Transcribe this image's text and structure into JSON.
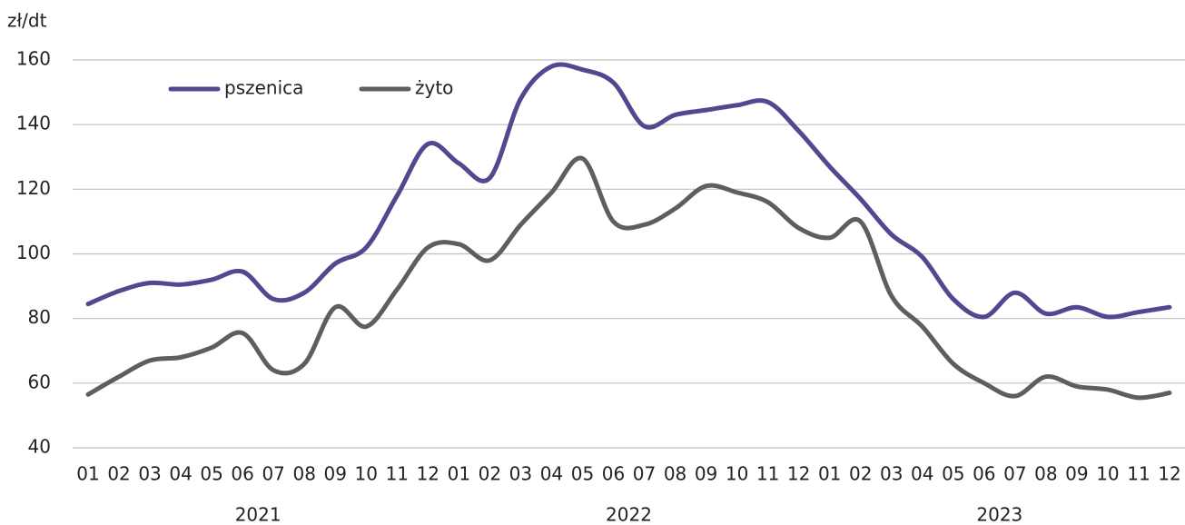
{
  "chart_data": {
    "type": "line",
    "y_axis_label": "zł/dt",
    "categories": [
      "01",
      "02",
      "03",
      "04",
      "05",
      "06",
      "07",
      "08",
      "09",
      "10",
      "11",
      "12",
      "01",
      "02",
      "03",
      "04",
      "05",
      "06",
      "07",
      "08",
      "09",
      "10",
      "11",
      "12",
      "01",
      "02",
      "03",
      "04",
      "05",
      "06",
      "07",
      "08",
      "09",
      "10",
      "11",
      "12"
    ],
    "category_groups": [
      "2021",
      "2022",
      "2023"
    ],
    "series": [
      {
        "name": "pszenica",
        "color": "#54468f",
        "values": [
          84.5,
          88.5,
          91,
          90.5,
          92,
          94.5,
          86,
          88,
          97,
          102,
          118,
          134,
          128,
          123.5,
          148,
          158,
          157,
          153,
          139.5,
          143,
          144.5,
          146,
          147,
          138,
          127,
          117,
          106,
          99,
          86,
          80.5,
          88,
          81.5,
          83.5,
          80.5,
          82,
          83.5
        ]
      },
      {
        "name": "żyto",
        "color": "#5e5e5e",
        "values": [
          56.5,
          62,
          67,
          68,
          71,
          75.5,
          64,
          66,
          83.5,
          77.5,
          89,
          102,
          103,
          98,
          109,
          119,
          129.5,
          110,
          109,
          114,
          121,
          119,
          116,
          108,
          105,
          110,
          87,
          77.5,
          66,
          60,
          56,
          62,
          59,
          58,
          55.5,
          57
        ]
      }
    ],
    "ylim": [
      40,
      160
    ],
    "yticks": [
      40,
      60,
      80,
      100,
      120,
      140,
      160
    ],
    "grid": true,
    "legend": "top-left"
  }
}
